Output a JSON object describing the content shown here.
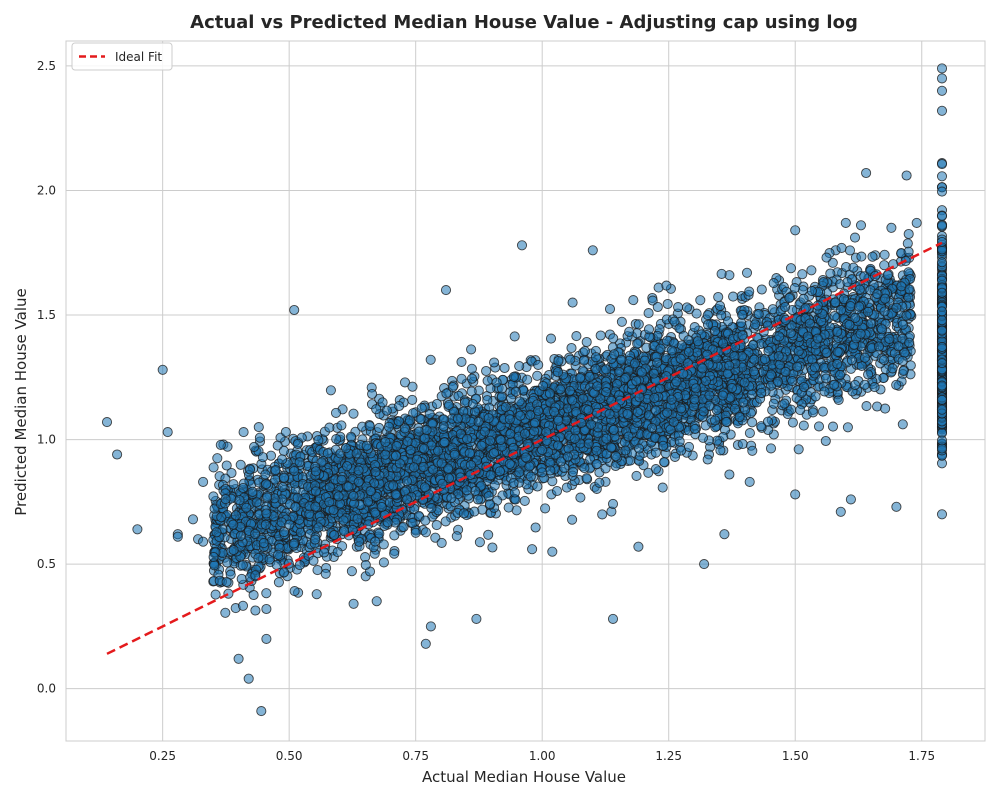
{
  "chart_data": {
    "type": "scatter",
    "title": "Actual vs Predicted Median House Value - Adjusting cap using log",
    "xlabel": "Actual Median House Value",
    "ylabel": "Predicted Median House Value",
    "xlim": [
      0.059,
      1.875
    ],
    "ylim": [
      -0.21,
      2.6
    ],
    "x_ticks": [
      0.25,
      0.5,
      0.75,
      1.0,
      1.25,
      1.5,
      1.75
    ],
    "x_tick_labels": [
      "0.25",
      "0.50",
      "0.75",
      "1.00",
      "1.25",
      "1.50",
      "1.75"
    ],
    "y_ticks": [
      0.0,
      0.5,
      1.0,
      1.5,
      2.0,
      2.5
    ],
    "y_tick_labels": [
      "0.0",
      "0.5",
      "1.0",
      "1.5",
      "2.0",
      "2.5"
    ],
    "grid": true,
    "legend": {
      "placement": "top-left",
      "entries": [
        "Ideal Fit"
      ]
    },
    "colors": {
      "points": "#1f77b4",
      "ideal_fit": "#e41a1c",
      "grid": "#cccccc"
    },
    "ideal_fit": {
      "name": "Ideal Fit",
      "x": [
        0.14,
        1.79
      ],
      "y": [
        0.14,
        1.79
      ]
    },
    "cap_value": 1.79,
    "series": [
      {
        "type": "scatter",
        "points": [
          [
            0.14,
            1.07
          ],
          [
            0.16,
            0.94
          ],
          [
            0.2,
            0.64
          ],
          [
            0.25,
            1.28
          ],
          [
            0.26,
            1.03
          ],
          [
            0.28,
            0.62
          ],
          [
            0.28,
            0.61
          ],
          [
            0.31,
            0.68
          ],
          [
            0.32,
            0.6
          ],
          [
            0.33,
            0.59
          ],
          [
            0.33,
            0.83
          ],
          [
            0.37,
            0.98
          ],
          [
            0.4,
            0.12
          ],
          [
            0.41,
            1.03
          ],
          [
            0.42,
            0.04
          ],
          [
            0.44,
            1.05
          ],
          [
            0.445,
            -0.09
          ],
          [
            0.455,
            0.2
          ],
          [
            0.455,
            0.32
          ],
          [
            0.51,
            1.52
          ],
          [
            0.81,
            1.6
          ],
          [
            0.96,
            1.78
          ],
          [
            1.1,
            1.76
          ],
          [
            1.06,
            1.55
          ],
          [
            0.77,
            0.18
          ],
          [
            0.78,
            0.25
          ],
          [
            0.87,
            0.28
          ],
          [
            1.14,
            0.28
          ],
          [
            1.32,
            0.5
          ],
          [
            1.36,
            0.62
          ],
          [
            1.64,
            2.07
          ],
          [
            1.72,
            2.06
          ],
          [
            1.5,
            1.84
          ],
          [
            1.6,
            1.87
          ],
          [
            1.63,
            1.86
          ],
          [
            1.69,
            1.85
          ],
          [
            1.74,
            1.87
          ],
          [
            1.58,
            1.76
          ],
          [
            1.23,
            1.61
          ],
          [
            1.18,
            1.56
          ],
          [
            1.37,
            1.66
          ],
          [
            1.59,
            0.71
          ],
          [
            1.61,
            0.76
          ],
          [
            1.7,
            0.73
          ],
          [
            1.37,
            0.86
          ],
          [
            1.5,
            0.78
          ],
          [
            1.41,
            0.83
          ],
          [
            1.19,
            0.57
          ],
          [
            0.98,
            0.56
          ],
          [
            1.02,
            0.55
          ]
        ]
      }
    ]
  }
}
